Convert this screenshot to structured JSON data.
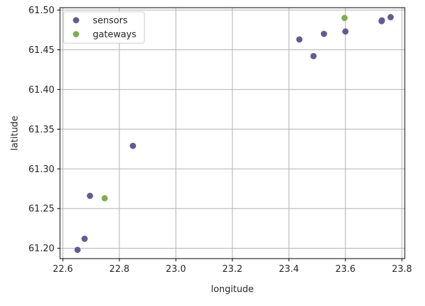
{
  "chart_data": {
    "type": "scatter",
    "title": "",
    "xlabel": "longitude",
    "ylabel": "latitude",
    "xlim": [
      22.59,
      23.81
    ],
    "ylim": [
      61.187,
      61.503
    ],
    "xticks": [
      "22.6",
      "22.8",
      "23.0",
      "23.2",
      "23.4",
      "23.6",
      "23.8"
    ],
    "yticks": [
      "61.20",
      "61.25",
      "61.30",
      "61.35",
      "61.40",
      "61.45",
      "61.50"
    ],
    "grid": true,
    "legend_position": "top-left",
    "series": [
      {
        "name": "sensors",
        "color": "#665a95",
        "points": [
          {
            "x": 22.652,
            "y": 61.198
          },
          {
            "x": 22.677,
            "y": 61.212
          },
          {
            "x": 22.696,
            "y": 61.266
          },
          {
            "x": 22.848,
            "y": 61.329
          },
          {
            "x": 23.437,
            "y": 61.463
          },
          {
            "x": 23.487,
            "y": 61.442
          },
          {
            "x": 23.524,
            "y": 61.47
          },
          {
            "x": 23.6,
            "y": 61.473
          },
          {
            "x": 23.728,
            "y": 61.486
          },
          {
            "x": 23.729,
            "y": 61.487
          },
          {
            "x": 23.76,
            "y": 61.491
          }
        ]
      },
      {
        "name": "gateways",
        "color": "#7db04c",
        "points": [
          {
            "x": 22.748,
            "y": 61.263
          },
          {
            "x": 23.597,
            "y": 61.49
          }
        ]
      }
    ]
  }
}
